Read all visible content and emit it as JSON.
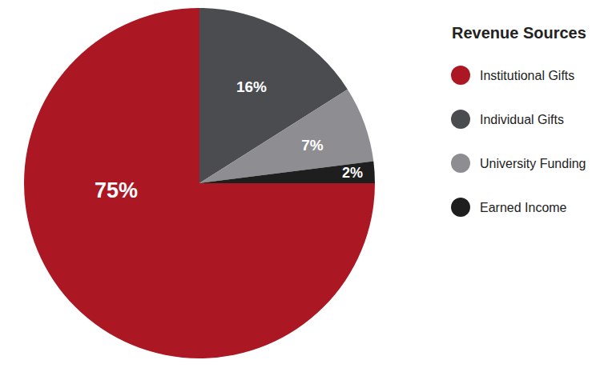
{
  "chart_data": {
    "type": "pie",
    "legend_title": "Revenue Sources",
    "categories": [
      "Institutional Gifts",
      "Individual Gifts",
      "University Funding",
      "Earned Income"
    ],
    "values": [
      75,
      16,
      7,
      2
    ],
    "value_labels": [
      "75%",
      "16%",
      "7%",
      "2%"
    ],
    "colors": [
      "#ab1722",
      "#4a4c50",
      "#8e8d91",
      "#1e1e1e"
    ],
    "data_labels": true,
    "legend": "right"
  }
}
